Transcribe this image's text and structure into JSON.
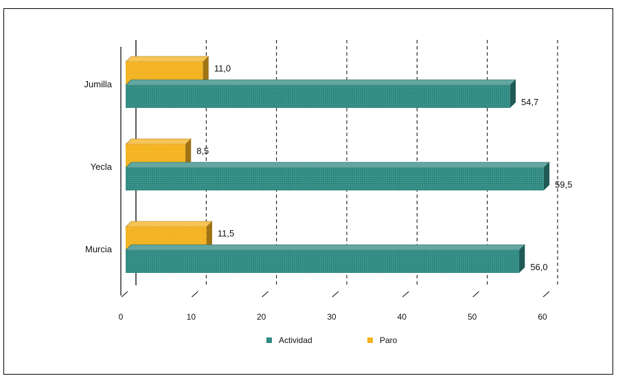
{
  "chart_data": {
    "type": "bar",
    "orientation": "horizontal",
    "categories": [
      "Jumilla",
      "Yecla",
      "Murcia"
    ],
    "series": [
      {
        "name": "Actividad",
        "color": "#2f8a82",
        "values": [
          54.7,
          59.5,
          56.0
        ],
        "labels": [
          "54,7",
          "59,5",
          "56,0"
        ]
      },
      {
        "name": "Paro",
        "color": "#f3b21e",
        "values": [
          11.0,
          8.5,
          11.5
        ],
        "labels": [
          "11,0",
          "8,5",
          "11,5"
        ]
      }
    ],
    "xlim": [
      0,
      60
    ],
    "xticks": [
      "0",
      "10",
      "20",
      "30",
      "40",
      "50",
      "60"
    ],
    "title": "",
    "xlabel": "",
    "ylabel": "",
    "grid": "vertical dashed",
    "legend_position": "bottom",
    "style": "3d"
  }
}
